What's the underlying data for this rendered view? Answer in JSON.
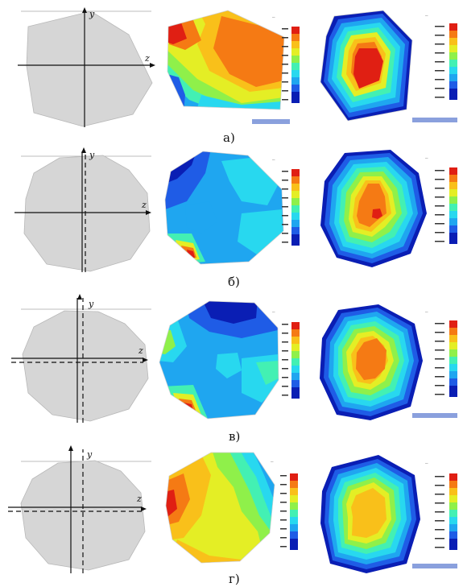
{
  "rows": [
    {
      "caption": "а)",
      "y_label": "y",
      "z_label": "z",
      "field_title": "—",
      "temp_title": "—"
    },
    {
      "caption": "б)",
      "y_label": "y",
      "z_label": "z",
      "field_title": "—",
      "temp_title": "—"
    },
    {
      "caption": "в)",
      "y_label": "y",
      "z_label": "z",
      "field_title": "—",
      "temp_title": "—"
    },
    {
      "caption": "г)",
      "y_label": "y",
      "z_label": "z",
      "field_title": "—",
      "temp_title": "—"
    }
  ],
  "colors": {
    "section_fill": "#d6d6d6",
    "scale": [
      "#0a1eb4",
      "#1f5ce6",
      "#1fa6f0",
      "#28d8ef",
      "#43f0b3",
      "#8ff04a",
      "#e4ee25",
      "#f9c01a",
      "#f57a14",
      "#e01f13"
    ]
  }
}
